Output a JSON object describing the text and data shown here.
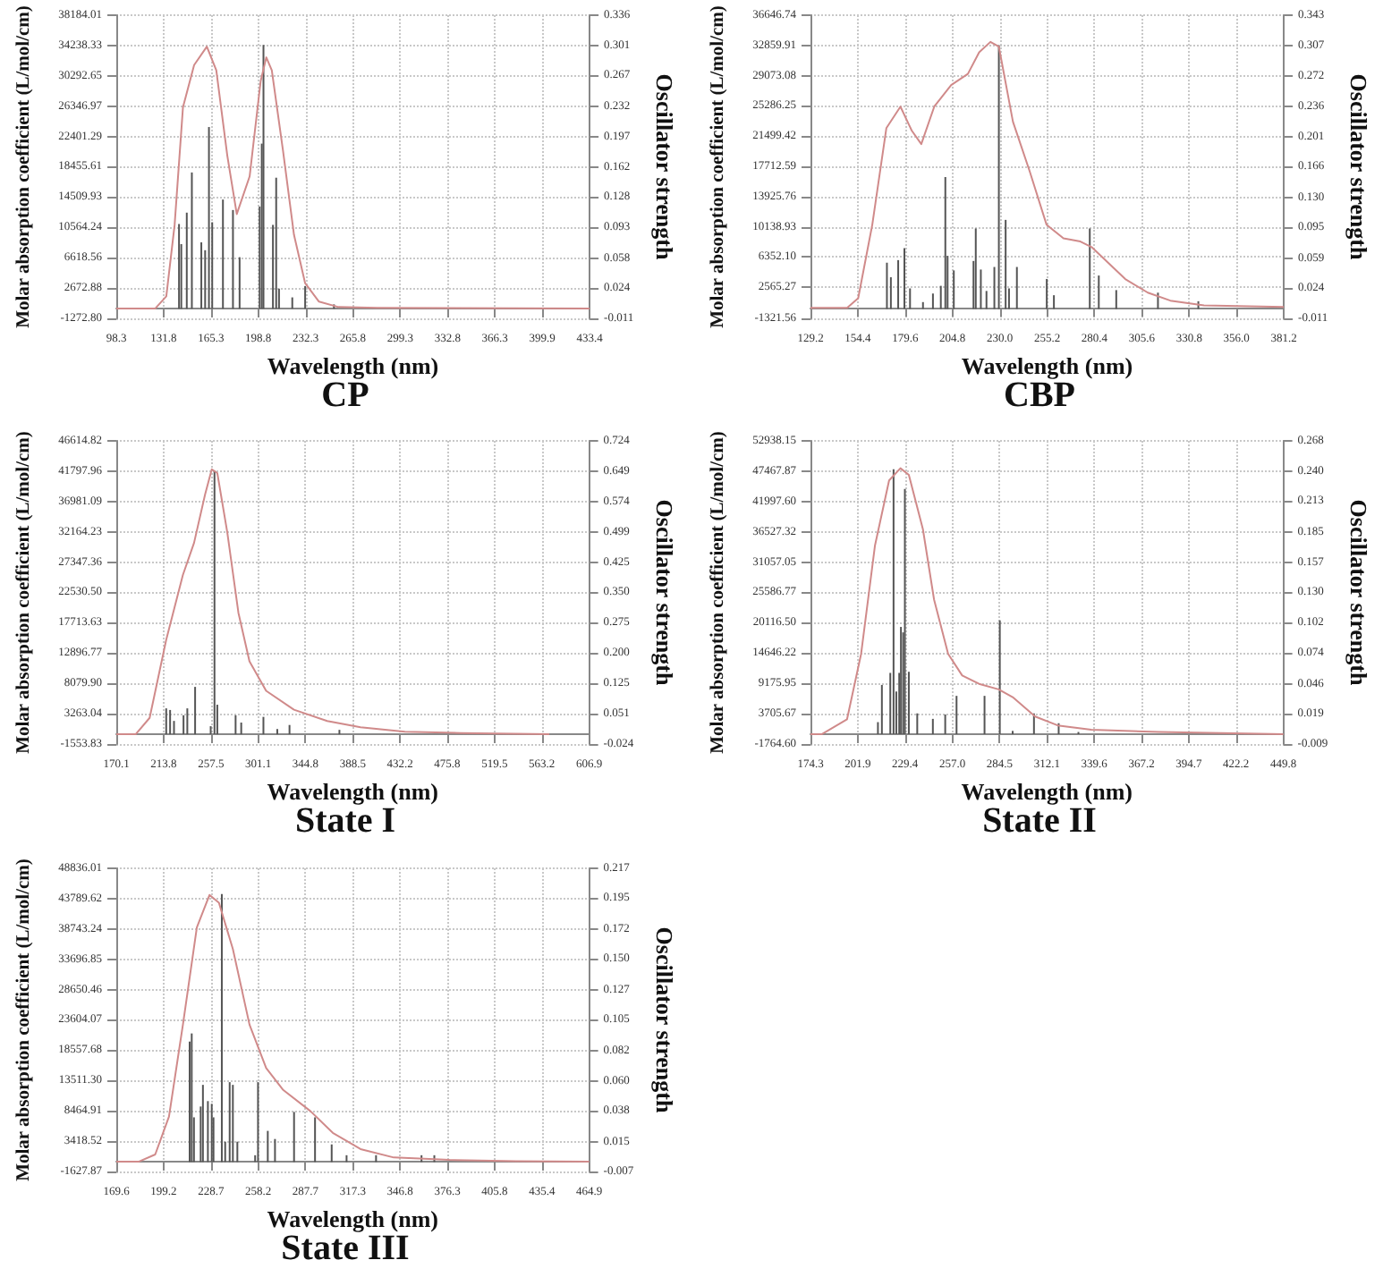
{
  "chart_data": [
    {
      "type": "line",
      "title": "CP",
      "xlabel": "Wavelength (nm)",
      "ylabel": "Molar absorption coefficient (L/mol/cm)",
      "y2label": "Oscillator strength",
      "grid": true,
      "marker": "none",
      "line_style": "solid",
      "xlim": [
        98.3,
        433.4
      ],
      "xticks": [
        98.3,
        131.8,
        165.3,
        198.8,
        232.3,
        265.8,
        299.3,
        332.8,
        366.3,
        399.9,
        433.4
      ],
      "ylim": [
        -1272.8,
        38184.01
      ],
      "yticks": [
        {
          "value": -1272.8,
          "label": "-1272.80"
        },
        2672.88,
        6618.56,
        10564.24,
        14509.93,
        18455.61,
        22401.29,
        26346.97,
        30292.65,
        34238.33,
        38184.01
      ],
      "y2lim": [
        -0.011,
        0.336
      ],
      "y2ticks": [
        -0.011,
        0.024,
        0.058,
        0.093,
        0.128,
        0.162,
        0.197,
        0.232,
        0.267,
        0.301,
        0.336
      ],
      "series": [
        {
          "color": "#d08a8a",
          "x": [
            98.3,
            125.8,
            133.7,
            139.6,
            145.5,
            153.4,
            162.4,
            169.1,
            176.9,
            183.6,
            192.7,
            200.5,
            204.5,
            208.4,
            216.3,
            224.1,
            232.0,
            241.8,
            255.6,
            283.0,
            433.4
          ],
          "values": [
            0,
            0,
            1600,
            10900,
            26200,
            31700,
            34100,
            31000,
            19900,
            12300,
            17200,
            29600,
            32700,
            31000,
            20600,
            9600,
            3300,
            900,
            200,
            100,
            0
          ]
        },
        {
          "type": "bar",
          "axis": "y2",
          "color": "#555555",
          "x": [
            142.7,
            144.3,
            148.2,
            151.8,
            158.5,
            161.2,
            163.9,
            166.2,
            173.8,
            180.9,
            185.6,
            199.8,
            201.3,
            202.5,
            209.2,
            211.5,
            213.5,
            222.9,
            232.0,
            252.4
          ],
          "values": [
            0.097,
            0.074,
            0.11,
            0.156,
            0.076,
            0.067,
            0.208,
            0.099,
            0.125,
            0.113,
            0.059,
            0.117,
            0.189,
            0.302,
            0.096,
            0.15,
            0.023,
            0.013,
            0.026,
            0.005
          ]
        }
      ]
    },
    {
      "type": "line",
      "title": "CBP",
      "xlabel": "Wavelength (nm)",
      "ylabel": "Molar absorption coefficient (L/mol/cm)",
      "y2label": "Oscillator strength",
      "grid": true,
      "marker": "none",
      "line_style": "solid",
      "xlim": [
        129.2,
        381.2
      ],
      "xticks": [
        129.2,
        154.4,
        179.6,
        204.8,
        {
          "value": 230,
          "label": "230.0"
        },
        255.2,
        280.4,
        305.6,
        330.8,
        {
          "value": 356,
          "label": "356.0"
        },
        381.2
      ],
      "ylim": [
        -1321.56,
        36646.74
      ],
      "yticks": [
        -1321.56,
        2565.27,
        {
          "value": 6352.1,
          "label": "6352.10"
        },
        10138.93,
        13925.76,
        17712.59,
        21499.42,
        25286.25,
        29073.08,
        32859.91,
        36646.74
      ],
      "y2lim": [
        -0.011,
        0.343
      ],
      "y2ticks": [
        -0.011,
        0.024,
        0.059,
        0.095,
        {
          "value": 0.13,
          "label": "0.130"
        },
        0.166,
        0.201,
        0.236,
        0.272,
        0.307,
        0.343
      ],
      "series": [
        {
          "color": "#d08a8a",
          "x": [
            129.2,
            148.7,
            154.6,
            162.1,
            169.6,
            177.1,
            183.1,
            188.2,
            195.1,
            204.1,
            213.0,
            219.0,
            225.0,
            229.5,
            237.0,
            245.9,
            254.9,
            263.9,
            272.9,
            278.9,
            287.9,
            296.8,
            308.8,
            320.8,
            338.7,
            381.2
          ],
          "values": [
            0,
            0,
            1200,
            10400,
            22500,
            25200,
            22200,
            20500,
            25200,
            27900,
            29300,
            32000,
            33300,
            32700,
            23300,
            17100,
            10400,
            8700,
            8300,
            7600,
            5600,
            3600,
            1900,
            900,
            300,
            100
          ]
        },
        {
          "type": "bar",
          "axis": "y2",
          "color": "#555555",
          "x": [
            169.9,
            172.0,
            175.9,
            179.2,
            182.2,
            189.1,
            194.4,
            198.6,
            201.0,
            202.2,
            205.5,
            216.0,
            217.2,
            219.9,
            222.9,
            227.1,
            229.5,
            233.1,
            234.9,
            239.1,
            255.0,
            258.8,
            277.9,
            282.7,
            292.0,
            314.2,
            335.7
          ],
          "values": [
            0.054,
            0.037,
            0.057,
            0.071,
            0.024,
            0.008,
            0.018,
            0.027,
            0.154,
            0.062,
            0.045,
            0.056,
            0.094,
            0.046,
            0.021,
            0.049,
            0.308,
            0.104,
            0.024,
            0.049,
            0.035,
            0.016,
            0.094,
            0.039,
            0.022,
            0.019,
            0.009
          ]
        }
      ]
    },
    {
      "type": "line",
      "title": "State I",
      "xlabel": "Wavelength (nm)",
      "ylabel": "Molar absorption coefficient (L/mol/cm)",
      "y2label": "Oscillator strength",
      "grid": true,
      "marker": "none",
      "line_style": "solid",
      "xlim": [
        170.1,
        606.9
      ],
      "xticks": [
        170.1,
        213.8,
        257.5,
        301.1,
        344.8,
        388.5,
        432.2,
        475.8,
        519.5,
        563.2,
        606.9
      ],
      "ylim": [
        -1553.83,
        46614.82
      ],
      "yticks": [
        -1553.83,
        3263.04,
        {
          "value": 8079.9,
          "label": "8079.90"
        },
        12896.77,
        17713.63,
        {
          "value": 22530.5,
          "label": "22530.50"
        },
        27347.36,
        32164.23,
        36981.09,
        41797.96,
        46614.82
      ],
      "y2lim": [
        -0.024,
        0.724
      ],
      "y2ticks": [
        -0.024,
        0.051,
        0.125,
        {
          "value": 0.2,
          "label": "0.200"
        },
        0.275,
        {
          "value": 0.35,
          "label": "0.350"
        },
        0.425,
        0.499,
        0.574,
        0.649,
        0.724
      ],
      "series": [
        {
          "color": "#d08a8a",
          "x": [
            170.1,
            188.0,
            200.9,
            216.2,
            231.6,
            241.9,
            252.1,
            258.3,
            263.4,
            272.6,
            282.9,
            293.1,
            308.5,
            334.2,
            364.9,
            395.7,
            436.7,
            488.0,
            570.0
          ],
          "values": [
            0,
            0,
            2600,
            15000,
            25300,
            30400,
            38100,
            42100,
            41500,
            32100,
            19300,
            11600,
            6900,
            3900,
            2100,
            1100,
            400,
            200,
            0
          ]
        },
        {
          "type": "bar",
          "axis": "y2",
          "color": "#555555",
          "x": [
            216.2,
            219.8,
            223.4,
            232.2,
            235.7,
            242.9,
            257.3,
            260.8,
            263.4,
            280.3,
            285.5,
            306.0,
            318.8,
            330.1,
            376.2
          ],
          "values": [
            0.064,
            0.06,
            0.033,
            0.047,
            0.064,
            0.117,
            0.02,
            0.651,
            0.073,
            0.047,
            0.029,
            0.043,
            0.013,
            0.023,
            0.011
          ]
        }
      ]
    },
    {
      "type": "line",
      "title": "State II",
      "xlabel": "Wavelength (nm)",
      "ylabel": "Molar absorption coefficient (L/mol/cm)",
      "y2label": "Oscillator strength",
      "grid": true,
      "marker": "none",
      "line_style": "solid",
      "xlim": [
        174.3,
        449.8
      ],
      "xticks": [
        174.3,
        201.9,
        229.4,
        {
          "value": 257,
          "label": "257.0"
        },
        284.5,
        312.1,
        339.6,
        367.2,
        394.7,
        422.2,
        449.8
      ],
      "ylim": [
        -1764.6,
        52938.15
      ],
      "yticks": [
        {
          "value": -1764.6,
          "label": "-1764.60"
        },
        3705.67,
        9175.95,
        14646.22,
        {
          "value": 20116.5,
          "label": "20116.50"
        },
        25586.77,
        31057.05,
        36527.32,
        {
          "value": 41997.6,
          "label": "41997.60"
        },
        47467.87,
        52938.15
      ],
      "y2lim": [
        -0.009,
        0.268
      ],
      "y2ticks": [
        -0.009,
        0.019,
        0.046,
        0.074,
        0.102,
        {
          "value": 0.13,
          "label": "0.130"
        },
        0.157,
        0.185,
        0.213,
        {
          "value": 0.24,
          "label": "0.240"
        },
        0.268
      ],
      "series": [
        {
          "color": "#d08a8a",
          "x": [
            174.3,
            180.8,
            195.6,
            203.8,
            211.9,
            220.1,
            226.7,
            231.6,
            239.8,
            246.3,
            254.5,
            262.7,
            272.5,
            283.9,
            292.1,
            305.2,
            318.3,
            337.9,
            377.2,
            449.8
          ],
          "values": [
            0,
            0,
            2700,
            14500,
            34100,
            45800,
            48000,
            46800,
            37000,
            24300,
            14500,
            10600,
            9100,
            8100,
            6700,
            3200,
            1600,
            800,
            400,
            0
          ]
        },
        {
          "type": "bar",
          "axis": "y2",
          "color": "#555555",
          "x": [
            213.6,
            215.9,
            220.8,
            222.7,
            224.3,
            226.0,
            227.0,
            228.3,
            229.3,
            231.6,
            236.5,
            245.6,
            252.8,
            259.4,
            275.7,
            284.6,
            292.1,
            304.5,
            318.9,
            330.4
          ],
          "values": [
            0.011,
            0.045,
            0.056,
            0.242,
            0.039,
            0.056,
            0.098,
            0.093,
            0.224,
            0.057,
            0.019,
            0.014,
            0.018,
            0.035,
            0.035,
            0.104,
            0.003,
            0.019,
            0.01,
            0.002
          ]
        }
      ]
    },
    {
      "type": "line",
      "title": "State III",
      "xlabel": "Wavelength (nm)",
      "ylabel": "Molar absorption coefficient (L/mol/cm)",
      "y2label": "Oscillator strength",
      "grid": true,
      "marker": "none",
      "line_style": "solid",
      "xlim": [
        169.6,
        464.9
      ],
      "xticks": [
        169.6,
        199.2,
        228.7,
        258.2,
        287.7,
        317.3,
        346.8,
        376.3,
        405.8,
        435.4,
        464.9
      ],
      "ylim": [
        -1627.87,
        48836.01
      ],
      "yticks": [
        -1627.87,
        3418.52,
        8464.91,
        {
          "value": 13511.3,
          "label": "13511.30"
        },
        18557.68,
        23604.07,
        28650.46,
        33696.85,
        38743.24,
        43789.62,
        48836.01
      ],
      "y2lim": [
        -0.007,
        0.217
      ],
      "y2ticks": [
        -0.007,
        0.015,
        0.038,
        {
          "value": 0.06,
          "label": "0.060"
        },
        0.082,
        0.105,
        0.127,
        {
          "value": 0.15,
          "label": "0.150"
        },
        0.172,
        0.195,
        0.217
      ],
      "series": [
        {
          "color": "#d08a8a",
          "x": [
            169.6,
            183.5,
            193.9,
            202.5,
            211.2,
            219.9,
            227.8,
            233.7,
            242.4,
            252.8,
            263.2,
            273.6,
            290.9,
            304.8,
            322.1,
            342.9,
            377.6,
            419.2,
            464.9
          ],
          "values": [
            0,
            0,
            1200,
            7500,
            22800,
            39000,
            44400,
            43100,
            35400,
            22800,
            15600,
            12000,
            8400,
            4800,
            2100,
            700,
            300,
            100,
            0
          ]
        },
        {
          "type": "bar",
          "axis": "y2",
          "color": "#555555",
          "x": [
            215.4,
            216.7,
            218.1,
            222.3,
            223.7,
            226.8,
            229.2,
            230.3,
            235.5,
            237.6,
            240.4,
            242.4,
            245.2,
            256.3,
            258.1,
            264.2,
            268.7,
            280.6,
            293.7,
            304.1,
            313.4,
            331.8,
            360.2,
            368.2
          ],
          "values": [
            0.089,
            0.095,
            0.033,
            0.041,
            0.057,
            0.045,
            0.043,
            0.033,
            0.198,
            0.015,
            0.059,
            0.057,
            0.015,
            0.005,
            0.059,
            0.023,
            0.017,
            0.037,
            0.033,
            0.013,
            0.005,
            0.005,
            0.005,
            0.005
          ]
        }
      ]
    }
  ]
}
